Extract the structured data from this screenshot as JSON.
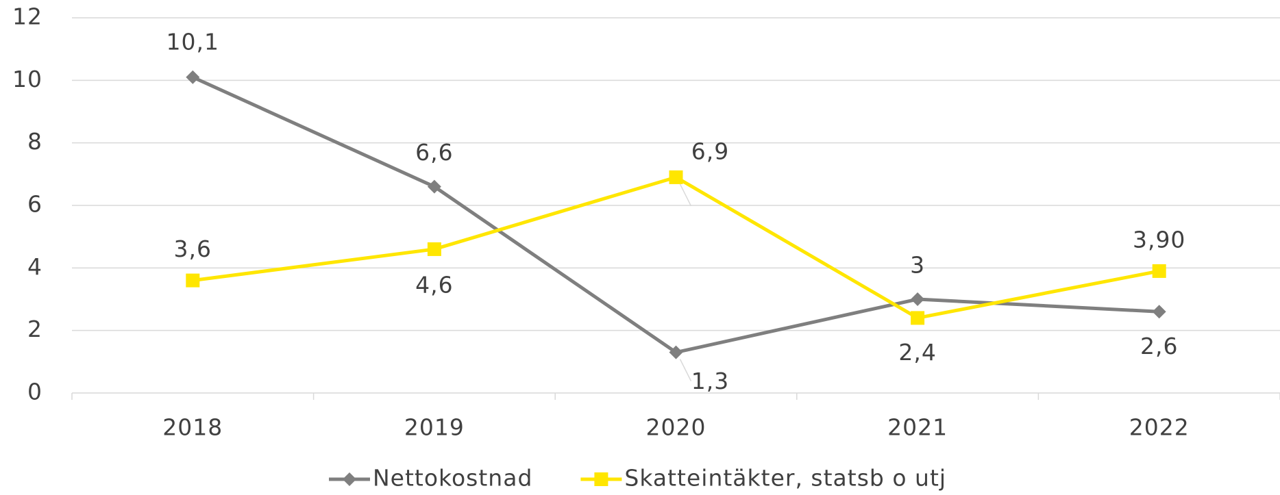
{
  "chart_data": {
    "type": "line",
    "categories": [
      "2018",
      "2019",
      "2020",
      "2021",
      "2022"
    ],
    "series": [
      {
        "name": "Nettokostnad",
        "color": "#7f7f7f",
        "marker": "diamond",
        "values": [
          10.1,
          6.6,
          1.3,
          3,
          2.6
        ],
        "value_labels": [
          "10,1",
          "6,6",
          "1,3",
          "3",
          "2,6"
        ]
      },
      {
        "name": "Skatteintäkter, statsb o utj",
        "color": "#ffe600",
        "marker": "square",
        "values": [
          3.6,
          4.6,
          6.9,
          2.4,
          3.9
        ],
        "value_labels": [
          "3,6",
          "4,6",
          "6,9",
          "2,4",
          "3,90"
        ]
      }
    ],
    "ylim": [
      0,
      12
    ],
    "yticks": [
      0,
      2,
      4,
      6,
      8,
      10,
      12
    ],
    "grid": true,
    "legend": "bottom"
  }
}
